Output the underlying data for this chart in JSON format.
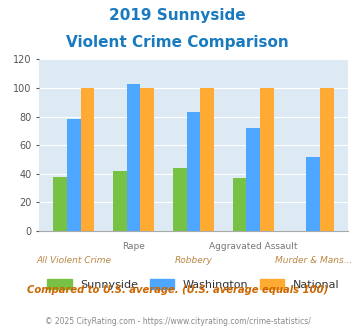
{
  "title_line1": "2019 Sunnyside",
  "title_line2": "Violent Crime Comparison",
  "title_color": "#1a7abf",
  "category_top_labels": [
    "",
    "Rape",
    "",
    "Aggravated Assault",
    ""
  ],
  "category_bottom_labels": [
    "All Violent Crime",
    "",
    "Robbery",
    "",
    "Murder & Mans..."
  ],
  "sunnyside_values": [
    38,
    42,
    44,
    37,
    0
  ],
  "washington_values": [
    78,
    103,
    83,
    72,
    52
  ],
  "national_values": [
    100,
    100,
    100,
    100,
    100
  ],
  "sunnyside_color": "#77c244",
  "washington_color": "#4da6ff",
  "national_color": "#ffaa33",
  "ylim": [
    0,
    120
  ],
  "yticks": [
    0,
    20,
    40,
    60,
    80,
    100,
    120
  ],
  "legend_labels": [
    "Sunnyside",
    "Washington",
    "National"
  ],
  "subtitle": "Compared to U.S. average. (U.S. average equals 100)",
  "subtitle_color": "#cc6600",
  "footnote": "© 2025 CityRating.com - https://www.cityrating.com/crime-statistics/",
  "footnote_color": "#888888",
  "plot_bg_color": "#ddeaf3",
  "fig_bg_color": "#ffffff"
}
